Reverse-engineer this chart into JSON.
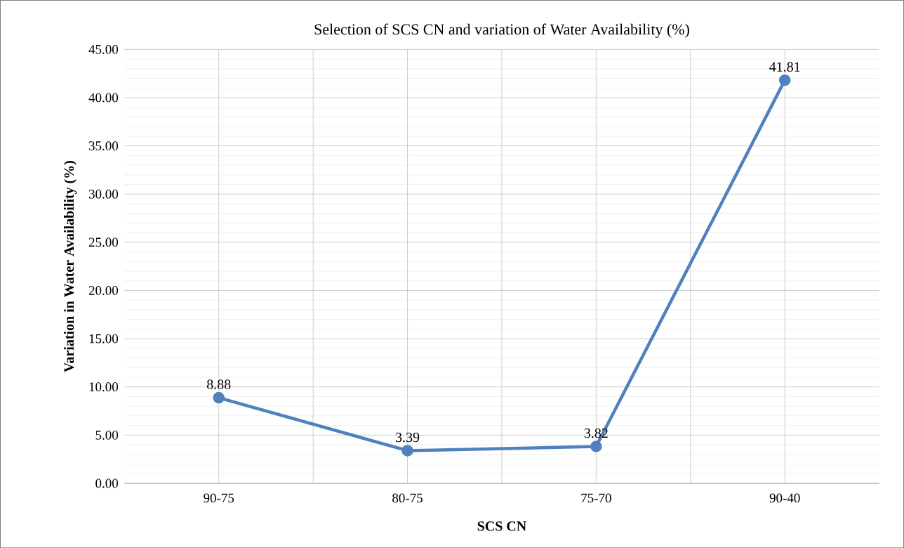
{
  "chart_data": {
    "type": "line",
    "title": "Selection of SCS CN and variation of Water Availability (%)",
    "xlabel": "SCS CN",
    "ylabel": "Variation in Water Availability (%)",
    "categories": [
      "90-75",
      "80-75",
      "75-70",
      "90-40"
    ],
    "series": [
      {
        "color": "#4f81bd",
        "values": [
          8.88,
          3.39,
          3.82,
          41.81
        ]
      }
    ],
    "ylim": [
      0,
      45
    ],
    "yticks": [
      {
        "value": 0,
        "label": "0.00"
      },
      {
        "value": 5,
        "label": "5.00"
      },
      {
        "value": 10,
        "label": "10.00"
      },
      {
        "value": 15,
        "label": "15.00"
      },
      {
        "value": 20,
        "label": "20.00"
      },
      {
        "value": 25,
        "label": "25.00"
      },
      {
        "value": 30,
        "label": "30.00"
      },
      {
        "value": 35,
        "label": "35.00"
      },
      {
        "value": 40,
        "label": "40.00"
      },
      {
        "value": 45,
        "label": "45.00"
      }
    ],
    "grid": true,
    "marker": "circle",
    "line_style": "solid",
    "data_labels": true
  }
}
